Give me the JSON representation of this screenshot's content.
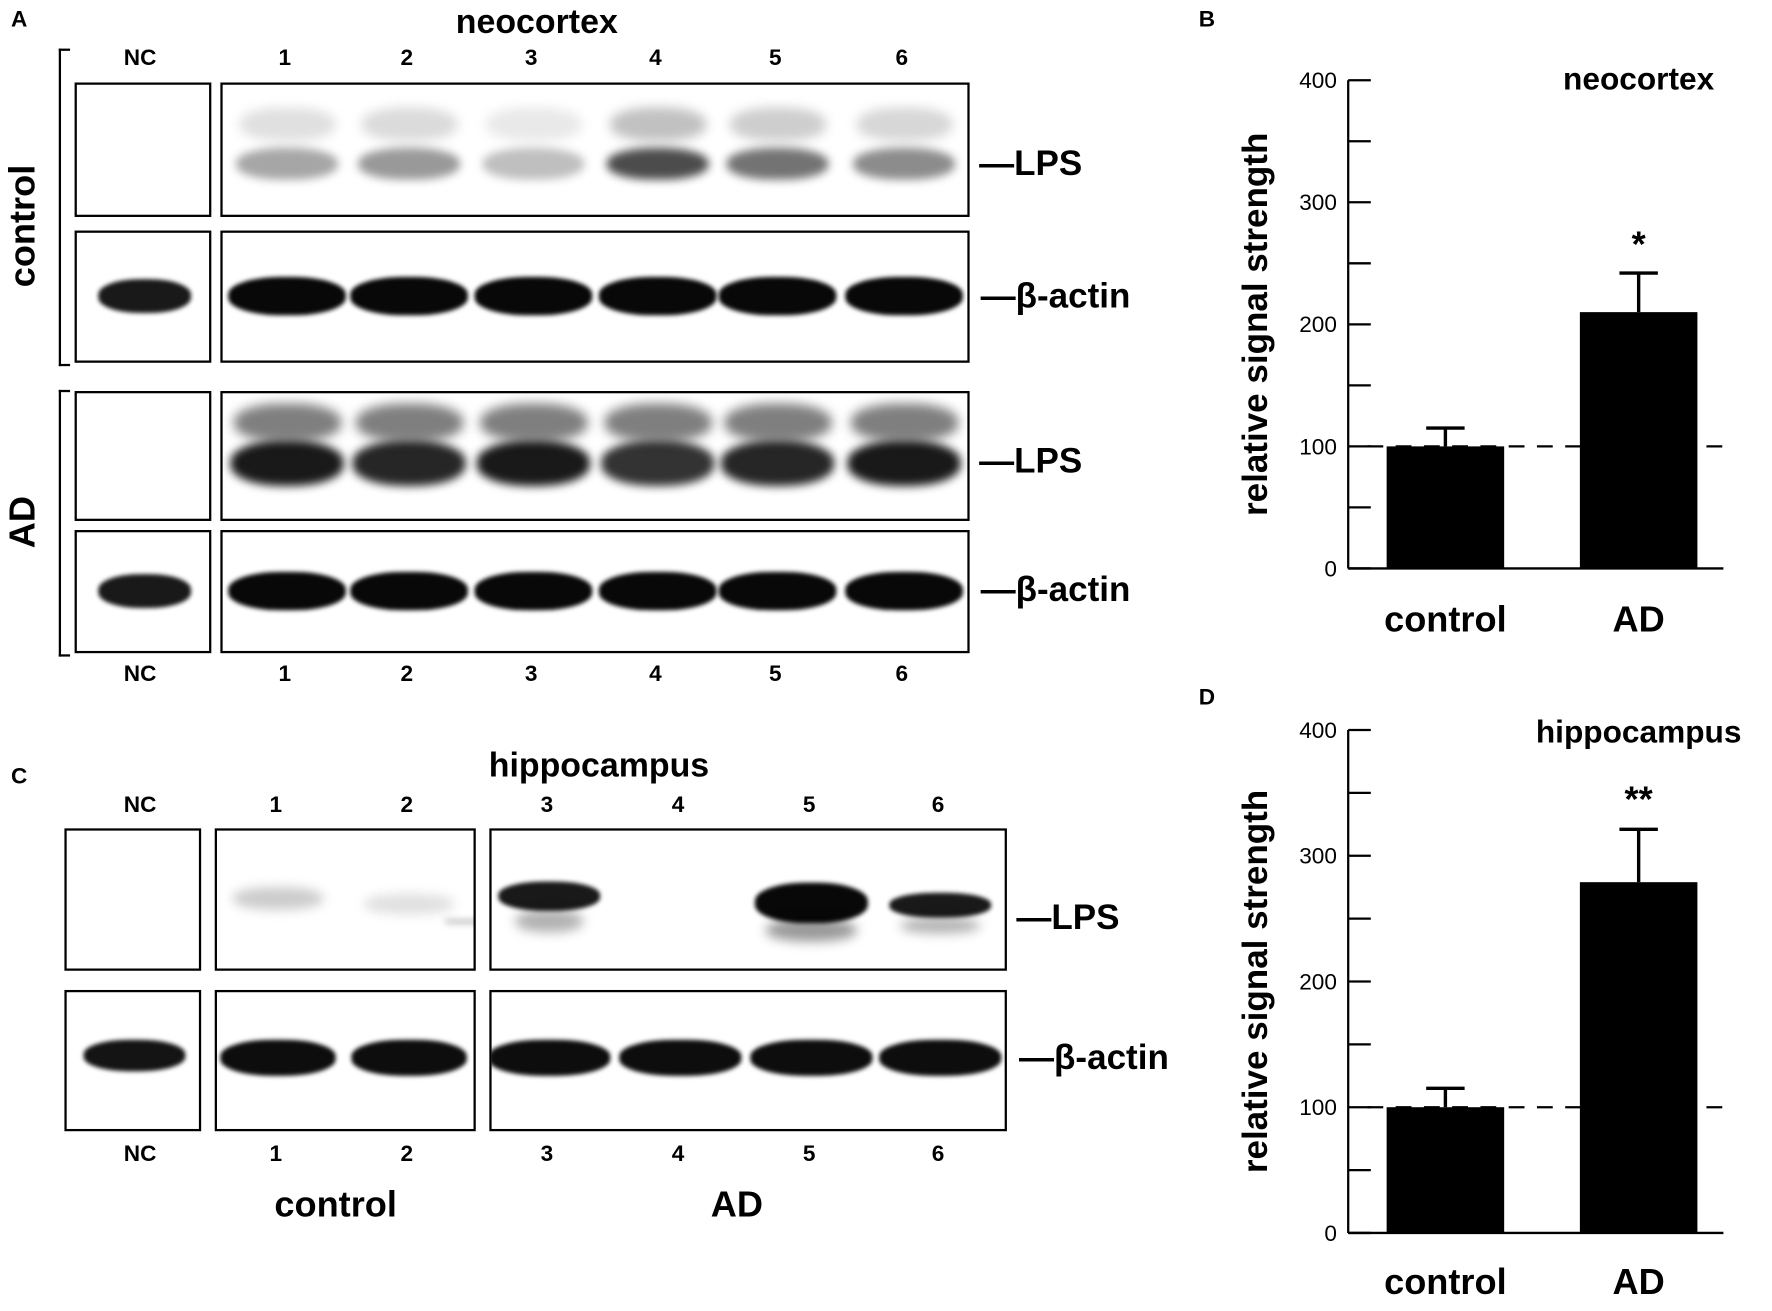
{
  "panelA": {
    "letter": "A",
    "title": "neocortex",
    "lanes_top": [
      "NC",
      "1",
      "2",
      "3",
      "4",
      "5",
      "6"
    ],
    "lanes_bottom": [
      "NC",
      "1",
      "2",
      "3",
      "4",
      "5",
      "6"
    ],
    "groups": [
      "control",
      "AD"
    ],
    "markers": {
      "lps": "—LPS",
      "actin": "—β-actin"
    }
  },
  "panelC": {
    "letter": "C",
    "title": "hippocampus",
    "lanes_top": [
      "NC",
      "1",
      "2",
      "3",
      "4",
      "5",
      "6"
    ],
    "lanes_bottom": [
      "NC",
      "1",
      "2",
      "3",
      "4",
      "5",
      "6"
    ],
    "groups": [
      "control",
      "AD"
    ],
    "markers": {
      "lps": "—LPS",
      "actin": "—β-actin"
    }
  },
  "chart_data": [
    {
      "panel": "B",
      "type": "bar",
      "title": "neocortex",
      "ylabel": "relative signal strength",
      "xlabel": "",
      "categories": [
        "control",
        "AD"
      ],
      "values": [
        100,
        210
      ],
      "error_upper": [
        115,
        242
      ],
      "significance": [
        "",
        "*"
      ],
      "ylim": [
        0,
        400
      ],
      "yticks": [
        0,
        100,
        200,
        300,
        400
      ],
      "reference_line": 100,
      "grid": false,
      "bar_color": "#000000"
    },
    {
      "panel": "D",
      "type": "bar",
      "title": "hippocampus",
      "ylabel": "relative signal strength",
      "xlabel": "",
      "categories": [
        "control",
        "AD"
      ],
      "values": [
        100,
        279
      ],
      "error_upper": [
        115,
        321
      ],
      "significance": [
        "",
        "**"
      ],
      "ylim": [
        0,
        400
      ],
      "yticks": [
        0,
        100,
        200,
        300,
        400
      ],
      "reference_line": 100,
      "grid": false,
      "bar_color": "#000000"
    }
  ]
}
